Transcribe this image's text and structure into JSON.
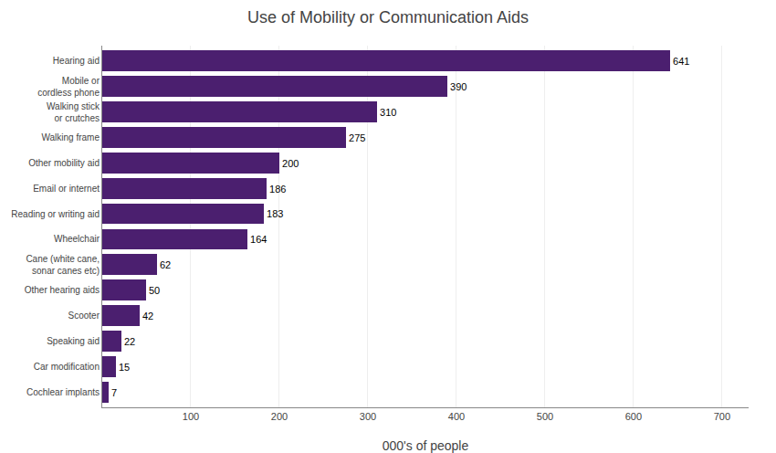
{
  "chart_data": {
    "type": "bar",
    "orientation": "horizontal",
    "title": "Use of Mobility or Communication Aids",
    "xlabel": "000's of people",
    "categories": [
      "Cochlear implants",
      "Car modification",
      "Speaking aid",
      "Scooter",
      "Other hearing aids",
      "Cane (white cane,\nsonar canes etc)",
      "Wheelchair",
      "Reading or writing aid",
      "Email or internet",
      "Other mobility aid",
      "Walking frame",
      "Walking stick\nor crutches",
      "Mobile or\ncordless phone",
      "Hearing aid"
    ],
    "values": [
      7,
      15,
      22,
      42,
      50,
      62,
      164,
      183,
      186,
      200,
      275,
      310,
      390,
      641
    ],
    "color": "#4b1f6f",
    "xlim": [
      0,
      730
    ],
    "xticks": [
      100,
      200,
      300,
      400,
      500,
      600,
      700
    ],
    "grid": true,
    "data_labels": true
  }
}
